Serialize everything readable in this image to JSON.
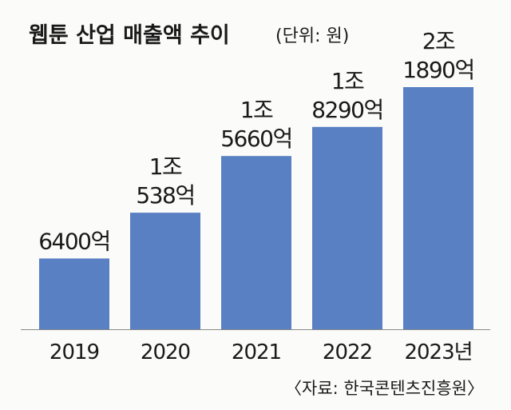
{
  "title": "웹툰 산업 매출액 추이",
  "unit": "(단위: 원)",
  "source": "〈자료: 한국콘텐츠진흥원〉",
  "colors": {
    "bar": "#5a80c4",
    "baseline": "#8a8a8a",
    "background": "#fbfbf9"
  },
  "chart_data": {
    "type": "bar",
    "categories": [
      "2019",
      "2020",
      "2021",
      "2022",
      "2023년"
    ],
    "values": [
      6400,
      10538,
      15660,
      18290,
      21890
    ],
    "value_unit": "억원",
    "data_labels": [
      [
        "6400억"
      ],
      [
        "1조",
        "538억"
      ],
      [
        "1조",
        "5660억"
      ],
      [
        "1조",
        "8290억"
      ],
      [
        "2조",
        "1890억"
      ]
    ],
    "ylim": [
      0,
      21890
    ],
    "grid": false,
    "legend": "none"
  }
}
